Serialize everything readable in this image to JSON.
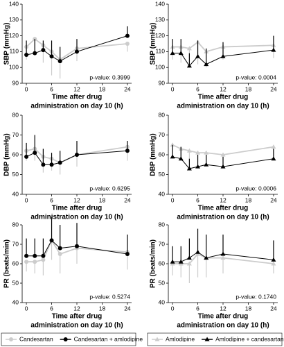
{
  "chart_data": [
    {
      "type": "line",
      "ylabel": "SBP (mmHg)",
      "xlabel": [
        "Time after drug",
        "administration on day 10 (h)"
      ],
      "annotation": "p-value: 0.3999",
      "x": [
        0,
        2,
        4,
        6,
        8,
        12,
        24
      ],
      "xlim": [
        -1,
        25
      ],
      "xticks": [
        0,
        6,
        12,
        18,
        24
      ],
      "ylim": [
        90,
        140
      ],
      "yticks": [
        90,
        100,
        110,
        120,
        130,
        140
      ],
      "series": [
        {
          "color": "#cccccc",
          "marker": "circle",
          "error_direction": "up",
          "values": [
            113,
            118,
            114,
            110,
            105,
            112,
            115
          ],
          "errors": [
            8,
            10,
            11,
            15,
            12,
            8,
            5
          ]
        },
        {
          "color": "#000000",
          "marker": "circle",
          "error_direction": "down",
          "values": [
            108,
            109,
            111,
            107,
            104,
            110,
            120
          ],
          "errors": [
            9,
            9,
            6,
            10,
            9,
            8,
            6
          ]
        }
      ]
    },
    {
      "type": "line",
      "ylabel": "SBP (mmHg)",
      "xlabel": [
        "Time after drug",
        "administration on day 10 (h)"
      ],
      "annotation": "p-value: 0.0004",
      "x": [
        0,
        2,
        4,
        6,
        8,
        12,
        24
      ],
      "xlim": [
        -1,
        25
      ],
      "xticks": [
        0,
        6,
        12,
        18,
        24
      ],
      "ylim": [
        90,
        140
      ],
      "yticks": [
        90,
        100,
        110,
        120,
        130,
        140
      ],
      "series": [
        {
          "color": "#cccccc",
          "marker": "triangle",
          "error_direction": "up",
          "values": [
            113,
            113,
            112,
            116,
            110,
            113,
            114
          ],
          "errors": [
            8,
            10,
            12,
            14,
            10,
            8,
            8
          ]
        },
        {
          "color": "#000000",
          "marker": "triangle",
          "error_direction": "down",
          "values": [
            109,
            109,
            101,
            107,
            102,
            107,
            111
          ],
          "errors": [
            9,
            9,
            8,
            10,
            10,
            9,
            9
          ]
        }
      ]
    },
    {
      "type": "line",
      "ylabel": "DBP (mmHg)",
      "xlabel": [
        "Time after drug",
        "administration on day 10 (h)"
      ],
      "annotation": "p-value: 0.6295",
      "x": [
        0,
        2,
        4,
        6,
        8,
        12,
        24
      ],
      "xlim": [
        -1,
        25
      ],
      "xticks": [
        0,
        6,
        12,
        18,
        24
      ],
      "ylim": [
        40,
        80
      ],
      "yticks": [
        40,
        50,
        60,
        70,
        80
      ],
      "series": [
        {
          "color": "#cccccc",
          "marker": "circle",
          "error_direction": "up",
          "values": [
            62,
            63,
            59,
            58,
            56,
            60,
            64
          ],
          "errors": [
            5,
            6,
            8,
            6,
            6,
            6,
            7
          ]
        },
        {
          "color": "#000000",
          "marker": "circle",
          "error_direction": "down",
          "values": [
            59,
            61,
            55,
            55,
            56,
            60,
            62
          ],
          "errors": [
            7,
            9,
            8,
            6,
            6,
            7,
            5
          ]
        }
      ]
    },
    {
      "type": "line",
      "ylabel": "DBP (mmHg)",
      "xlabel": [
        "Time after drug",
        "administration on day 10 (h)"
      ],
      "annotation": "p-value: 0.0006",
      "x": [
        0,
        2,
        4,
        6,
        8,
        12,
        24
      ],
      "xlim": [
        -1,
        25
      ],
      "xticks": [
        0,
        6,
        12,
        18,
        24
      ],
      "ylim": [
        40,
        80
      ],
      "yticks": [
        40,
        50,
        60,
        70,
        80
      ],
      "series": [
        {
          "color": "#cccccc",
          "marker": "triangle",
          "error_direction": "up",
          "values": [
            65,
            63,
            62,
            61,
            61,
            60,
            64
          ],
          "errors": [
            6,
            6,
            5,
            5,
            5,
            5,
            5
          ]
        },
        {
          "color": "#000000",
          "marker": "triangle",
          "error_direction": "down",
          "values": [
            59,
            58,
            53,
            54,
            55,
            54,
            58
          ],
          "errors": [
            6,
            6,
            5,
            6,
            5,
            5,
            5
          ]
        }
      ]
    },
    {
      "type": "line",
      "ylabel": "PR (beats/min)",
      "xlabel": [
        "Time after drug",
        "administration on day 10 (h)"
      ],
      "annotation": "p-value: 0.5274",
      "x": [
        0,
        2,
        4,
        6,
        8,
        12,
        24
      ],
      "xlim": [
        -1,
        25
      ],
      "xticks": [
        0,
        6,
        12,
        18,
        24
      ],
      "ylim": [
        40,
        80
      ],
      "yticks": [
        40,
        50,
        60,
        70,
        80
      ],
      "legend": "below",
      "series": [
        {
          "name": "Candesartan",
          "color": "#cccccc",
          "marker": "circle",
          "error_direction": "up",
          "values": [
            61,
            61,
            62,
            72,
            65,
            68,
            66
          ],
          "errors": [
            5,
            6,
            8,
            10,
            10,
            8,
            9
          ]
        },
        {
          "name": "Candesartan + amlodipine",
          "color": "#000000",
          "marker": "circle",
          "error_direction": "down",
          "values": [
            64,
            64,
            64,
            72,
            68,
            69,
            65
          ],
          "errors": [
            9,
            9,
            9,
            12,
            12,
            12,
            10
          ]
        }
      ]
    },
    {
      "type": "line",
      "ylabel": "PR (beats/min)",
      "xlabel": [
        "Time after drug",
        "administration on day 10 (h)"
      ],
      "annotation": "p-value: 0.1740",
      "x": [
        0,
        2,
        4,
        6,
        8,
        12,
        24
      ],
      "xlim": [
        -1,
        25
      ],
      "xticks": [
        0,
        6,
        12,
        18,
        24
      ],
      "ylim": [
        40,
        80
      ],
      "yticks": [
        40,
        50,
        60,
        70,
        80
      ],
      "legend": "below",
      "series": [
        {
          "name": "Amlodipine",
          "color": "#cccccc",
          "marker": "triangle",
          "error_direction": "up",
          "values": [
            60,
            60,
            60,
            65,
            63,
            63,
            60
          ],
          "errors": [
            6,
            7,
            10,
            12,
            10,
            8,
            5
          ]
        },
        {
          "name": "Amlodipine + candesartan",
          "color": "#000000",
          "marker": "triangle",
          "error_direction": "down",
          "values": [
            61,
            61,
            63,
            66,
            63,
            65,
            62
          ],
          "errors": [
            8,
            8,
            10,
            12,
            12,
            10,
            10
          ]
        }
      ]
    }
  ]
}
